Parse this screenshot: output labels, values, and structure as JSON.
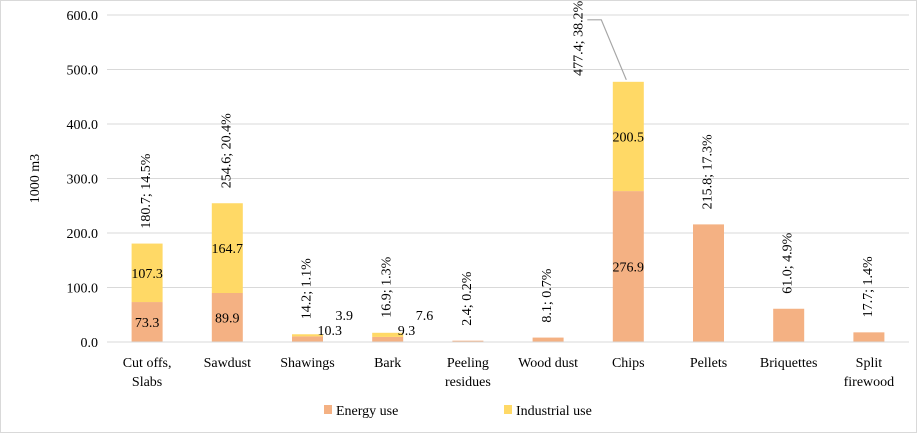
{
  "chart_data": {
    "type": "bar",
    "stacked": true,
    "ylabel": "1000 m3",
    "ylim": [
      0,
      600
    ],
    "yticks": [
      "0.0",
      "100.0",
      "200.0",
      "300.0",
      "400.0",
      "500.0",
      "600.0"
    ],
    "grid": true,
    "legend_position": "bottom",
    "categories": [
      [
        "Cut offs,",
        "Slabs"
      ],
      [
        "Sawdust"
      ],
      [
        "Shawings"
      ],
      [
        "Bark"
      ],
      [
        "Peeling",
        "residues"
      ],
      [
        "Wood dust"
      ],
      [
        "Chips"
      ],
      [
        "Pellets"
      ],
      [
        "Briquettes"
      ],
      [
        "Split",
        "firewood"
      ]
    ],
    "series": [
      {
        "name": "Energy use",
        "color": "#f4b183",
        "values": [
          73.3,
          89.9,
          10.3,
          9.3,
          2.4,
          8.1,
          276.9,
          215.8,
          61.0,
          17.7
        ],
        "labels": [
          "73.3",
          "89.9",
          "10.3",
          "9.3",
          "",
          "",
          "276.9",
          "",
          "",
          ""
        ]
      },
      {
        "name": "Industrial use",
        "color": "#ffd966",
        "values": [
          107.3,
          164.7,
          3.9,
          7.6,
          0,
          0,
          200.5,
          0,
          0,
          0
        ],
        "labels": [
          "107.3",
          "164.7",
          "3.9",
          "7.6",
          "",
          "",
          "200.5",
          "",
          "",
          ""
        ]
      }
    ],
    "total_labels": [
      "180.7; 14.5%",
      "254.6; 20.4%",
      "14.2; 1.1%",
      "16.9; 1.3%",
      "2.4; 0.2%",
      "8.1; 0.7%",
      "477.4; 38.2%",
      "215.8; 17.3%",
      "61.0; 4.9%",
      "17.7; 1.4%"
    ]
  }
}
